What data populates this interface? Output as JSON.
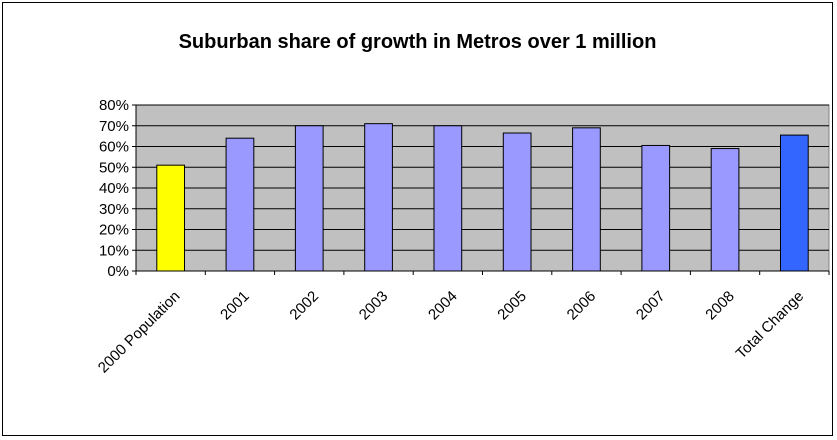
{
  "chart_data": {
    "type": "bar",
    "title": "Suburban share of growth in Metros over 1 million",
    "xlabel": "",
    "ylabel": "",
    "categories": [
      "2000 Population",
      "2001",
      "2002",
      "2003",
      "2004",
      "2005",
      "2006",
      "2007",
      "2008",
      "Total Change"
    ],
    "values": [
      51,
      64,
      70,
      71,
      70,
      66.5,
      69,
      60.5,
      59,
      65.5
    ],
    "bar_colors": [
      "#ffff00",
      "#9999ff",
      "#9999ff",
      "#9999ff",
      "#9999ff",
      "#9999ff",
      "#9999ff",
      "#9999ff",
      "#9999ff",
      "#3366ff"
    ],
    "ylim": [
      0,
      80
    ],
    "yticks": [
      0,
      10,
      20,
      30,
      40,
      50,
      60,
      70,
      80
    ],
    "ytick_labels": [
      "0%",
      "10%",
      "20%",
      "30%",
      "40%",
      "50%",
      "60%",
      "70%",
      "80%"
    ],
    "grid": true,
    "plot_background": "#c0c0c0",
    "legend": "none"
  }
}
